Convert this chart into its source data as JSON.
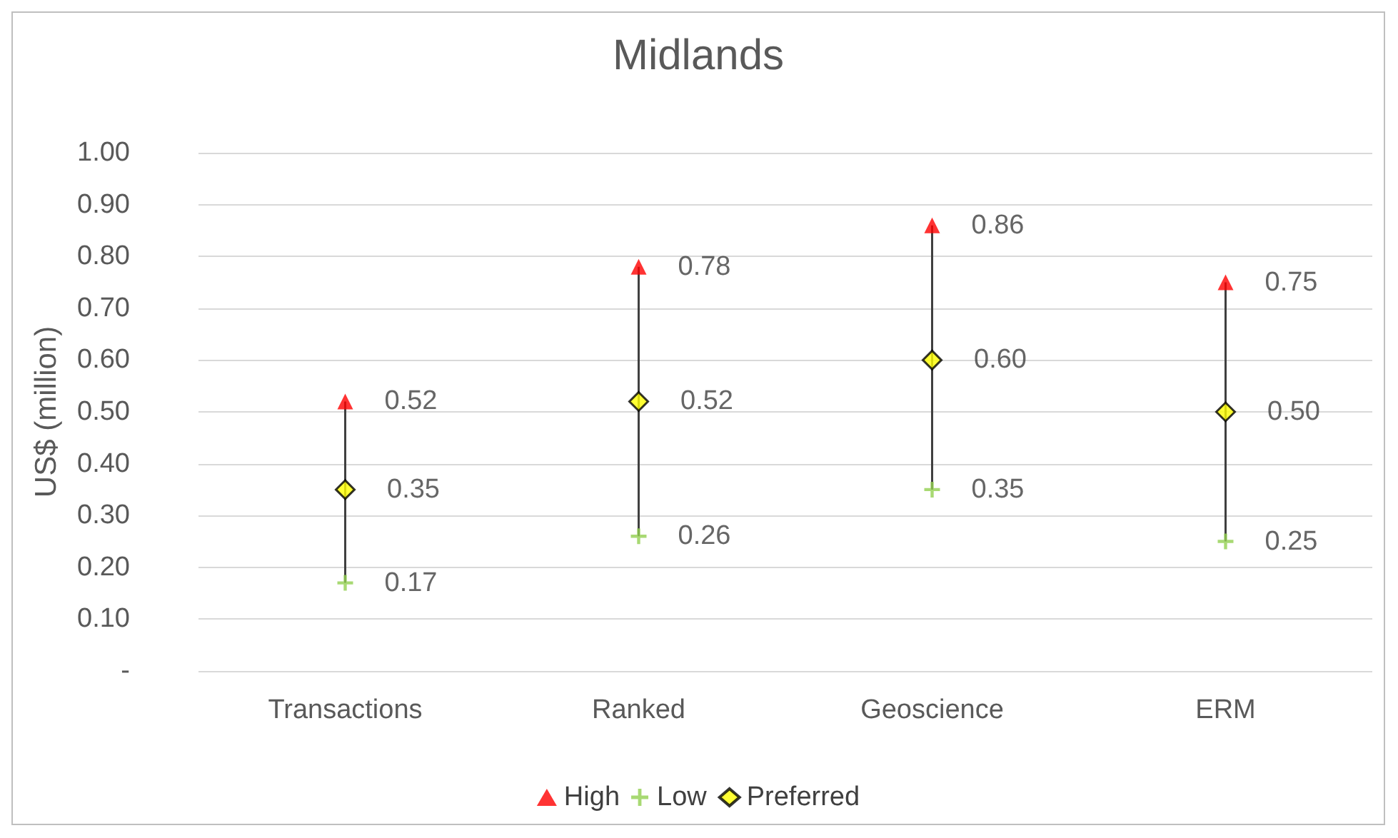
{
  "chart_data": {
    "type": "scatter",
    "title": "Midlands",
    "ylabel": "US$ (million)",
    "categories": [
      "Transactions",
      "Ranked",
      "Geoscience",
      "ERM"
    ],
    "series": [
      {
        "name": "High",
        "color": "#ff0000",
        "marker": "triangle",
        "values": [
          0.52,
          0.78,
          0.86,
          0.75
        ],
        "value_labels": [
          "0.52",
          "0.78",
          "0.86",
          "0.75"
        ]
      },
      {
        "name": "Low",
        "color": "#92d050",
        "marker": "cross",
        "values": [
          0.17,
          0.26,
          0.35,
          0.25
        ],
        "value_labels": [
          "0.17",
          "0.26",
          "0.35",
          "0.25"
        ]
      },
      {
        "name": "Preferred",
        "color": "#ffff00",
        "marker": "diamond",
        "values": [
          0.35,
          0.52,
          0.6,
          0.5
        ],
        "value_labels": [
          "0.35",
          "0.52",
          "0.60",
          "0.50"
        ]
      }
    ],
    "ylim": [
      0,
      1
    ],
    "yticks": [
      {
        "value": 0,
        "label": "-"
      },
      {
        "value": 0.1,
        "label": "0.10"
      },
      {
        "value": 0.2,
        "label": "0.20"
      },
      {
        "value": 0.3,
        "label": "0.30"
      },
      {
        "value": 0.4,
        "label": "0.40"
      },
      {
        "value": 0.5,
        "label": "0.50"
      },
      {
        "value": 0.6,
        "label": "0.60"
      },
      {
        "value": 0.7,
        "label": "0.70"
      },
      {
        "value": 0.8,
        "label": "0.80"
      },
      {
        "value": 0.9,
        "label": "0.90"
      },
      {
        "value": 1,
        "label": "1.00"
      }
    ],
    "grid": "y",
    "legend": "bottom"
  }
}
